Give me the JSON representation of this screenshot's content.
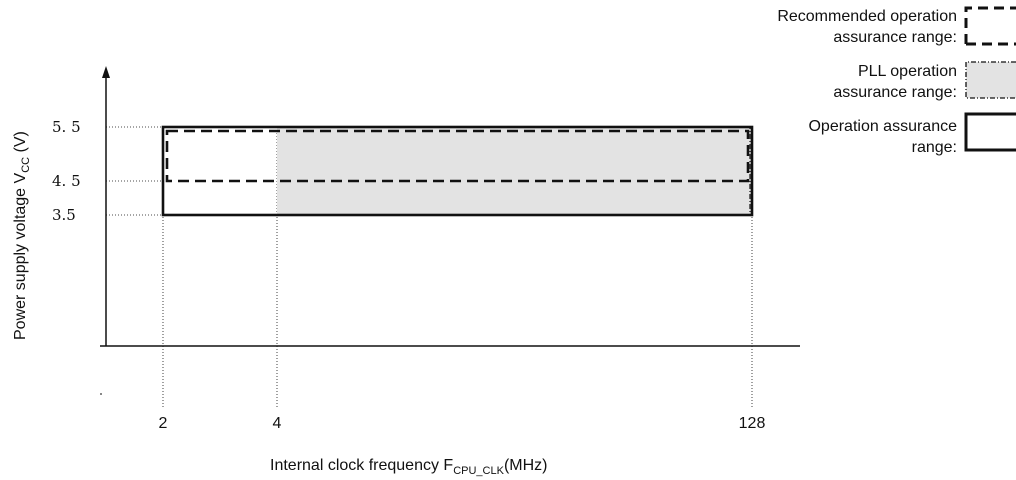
{
  "chart_data": {
    "type": "range-diagram",
    "xlabel": {
      "main": "Internal clock frequency F",
      "sub": "CPU_CLK",
      "unit": "(MHz)"
    },
    "ylabel": {
      "main": "Power supply voltage V",
      "sub": "CC",
      "unit": " (V)"
    },
    "x_ticks": [
      {
        "value": 2,
        "label": "2"
      },
      {
        "value": 4,
        "label": "4"
      },
      {
        "value": 128,
        "label": "128"
      }
    ],
    "y_ticks": [
      {
        "value": 5.5,
        "label": "5. 5"
      },
      {
        "value": 4.5,
        "label": "4. 5"
      },
      {
        "value": 3.5,
        "label": "3.5"
      }
    ],
    "regions": [
      {
        "name": "Operation assurance range",
        "x": [
          2,
          128
        ],
        "y": [
          3.5,
          5.5
        ],
        "style": "solid"
      },
      {
        "name": "PLL operation assurance range",
        "x": [
          4,
          128
        ],
        "y": [
          3.5,
          5.5
        ],
        "style": "dash-dot",
        "fill": "#e3e3e3"
      },
      {
        "name": "Recommended operation assurance range",
        "x": [
          2,
          128
        ],
        "y": [
          4.5,
          5.5
        ],
        "style": "dashed"
      }
    ]
  },
  "legend": [
    {
      "lines": [
        "Recommended operation",
        "assurance range:"
      ],
      "style": "dashed"
    },
    {
      "lines": [
        "PLL operation",
        "assurance range:"
      ],
      "style": "dash-dot"
    },
    {
      "lines": [
        "Operation assurance",
        "range:"
      ],
      "style": "solid"
    }
  ]
}
